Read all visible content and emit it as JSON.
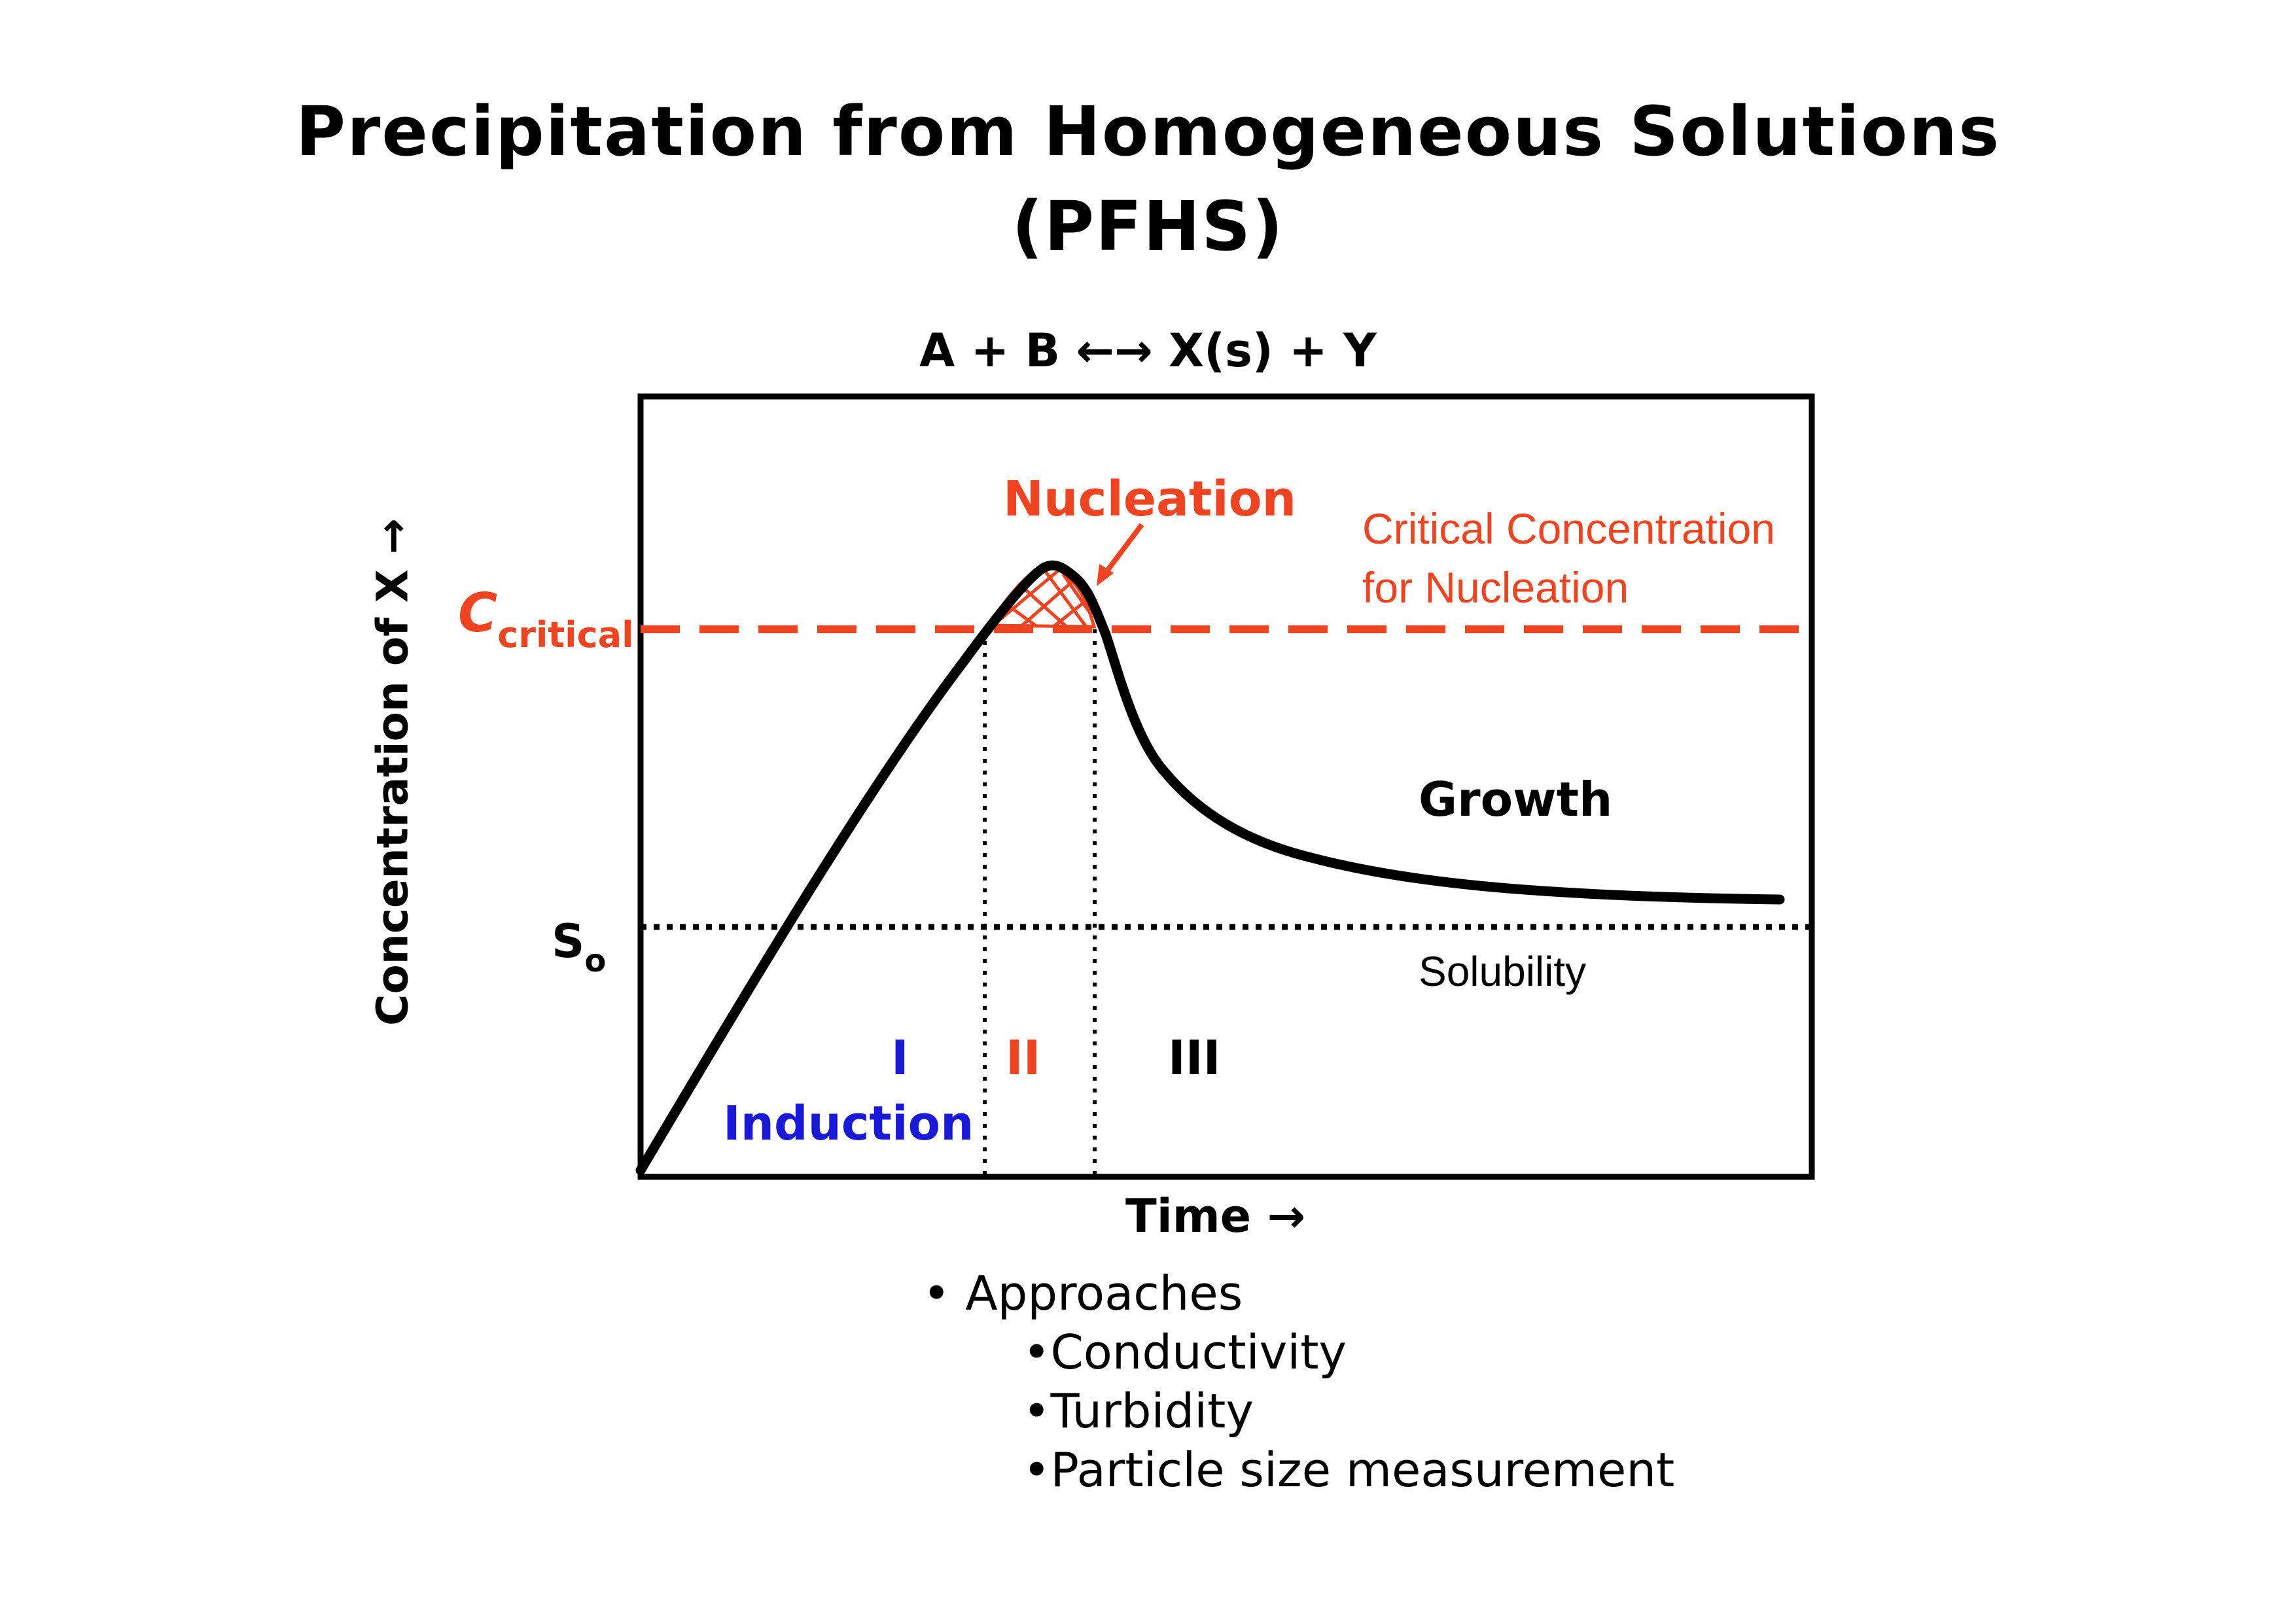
{
  "title": {
    "line1": "Precipitation from Homogeneous Solutions",
    "line2": "(PFHS)"
  },
  "equation": "A + B ←→ X(s) + Y",
  "axes": {
    "ylabel": "Concentration of X →",
    "xlabel": "Time →"
  },
  "levels": {
    "c_critical_main": "C",
    "c_critical_sub": "critical",
    "s0_main": "S",
    "s0_sub": "o"
  },
  "annotations": {
    "nucleation": "Nucleation",
    "critical_line1": "Critical Concentration",
    "critical_line2": "for Nucleation",
    "growth": "Growth",
    "solubility": "Solubility"
  },
  "regions": {
    "r1": "I",
    "r2": "II",
    "r3": "III",
    "induction": "Induction"
  },
  "approaches": {
    "heading": "• Approaches",
    "items": [
      "•Conductivity",
      "•Turbidity",
      "•Particle size measurement"
    ]
  },
  "colors": {
    "accent_red": "#ee4422",
    "induction_blue": "#1a1ad6",
    "curve": "#000000"
  }
}
